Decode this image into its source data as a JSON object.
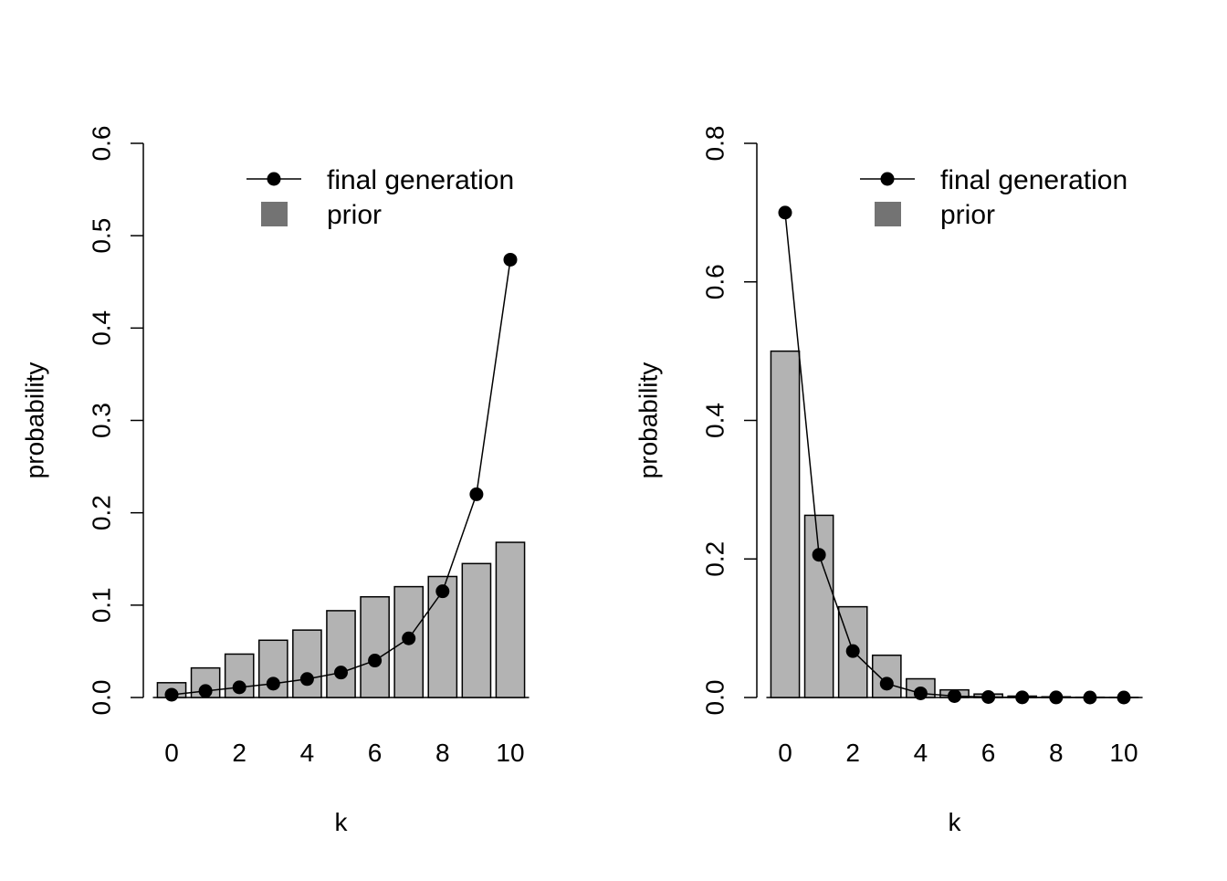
{
  "chart_data": [
    {
      "type": "bar",
      "title": "",
      "xlabel": "k",
      "ylabel": "probability",
      "ylim": [
        0,
        0.6
      ],
      "yticks": [
        "0.0",
        "0.1",
        "0.2",
        "0.3",
        "0.4",
        "0.5",
        "0.6"
      ],
      "xticks": [
        "0",
        "2",
        "4",
        "6",
        "8",
        "10"
      ],
      "categories": [
        0,
        1,
        2,
        3,
        4,
        5,
        6,
        7,
        8,
        9,
        10
      ],
      "legend": {
        "position": "top-right",
        "line_label": "final generation",
        "bar_label": "prior"
      },
      "series": [
        {
          "name": "prior",
          "type": "bar",
          "color": "#b3b3b3",
          "values": [
            0.016,
            0.032,
            0.047,
            0.062,
            0.073,
            0.094,
            0.109,
            0.12,
            0.131,
            0.145,
            0.168
          ]
        },
        {
          "name": "final generation",
          "type": "line",
          "color": "#000000",
          "values": [
            0.003,
            0.007,
            0.011,
            0.015,
            0.02,
            0.027,
            0.04,
            0.064,
            0.115,
            0.22,
            0.474
          ]
        }
      ]
    },
    {
      "type": "bar",
      "title": "",
      "xlabel": "k",
      "ylabel": "probability",
      "ylim": [
        0,
        0.8
      ],
      "yticks": [
        "0.0",
        "0.2",
        "0.4",
        "0.6",
        "0.8"
      ],
      "xticks": [
        "0",
        "2",
        "4",
        "6",
        "8",
        "10"
      ],
      "categories": [
        0,
        1,
        2,
        3,
        4,
        5,
        6,
        7,
        8,
        9,
        10
      ],
      "legend": {
        "position": "top-right",
        "line_label": "final generation",
        "bar_label": "prior"
      },
      "series": [
        {
          "name": "prior",
          "type": "bar",
          "color": "#b3b3b3",
          "values": [
            0.5,
            0.263,
            0.131,
            0.061,
            0.027,
            0.011,
            0.005,
            0.002,
            0.001,
            0.0004,
            0.0002
          ]
        },
        {
          "name": "final generation",
          "type": "line",
          "color": "#000000",
          "values": [
            0.7,
            0.206,
            0.067,
            0.02,
            0.006,
            0.002,
            0.0007,
            0.0002,
            0.0001,
            0.0,
            0.0
          ]
        }
      ]
    }
  ]
}
